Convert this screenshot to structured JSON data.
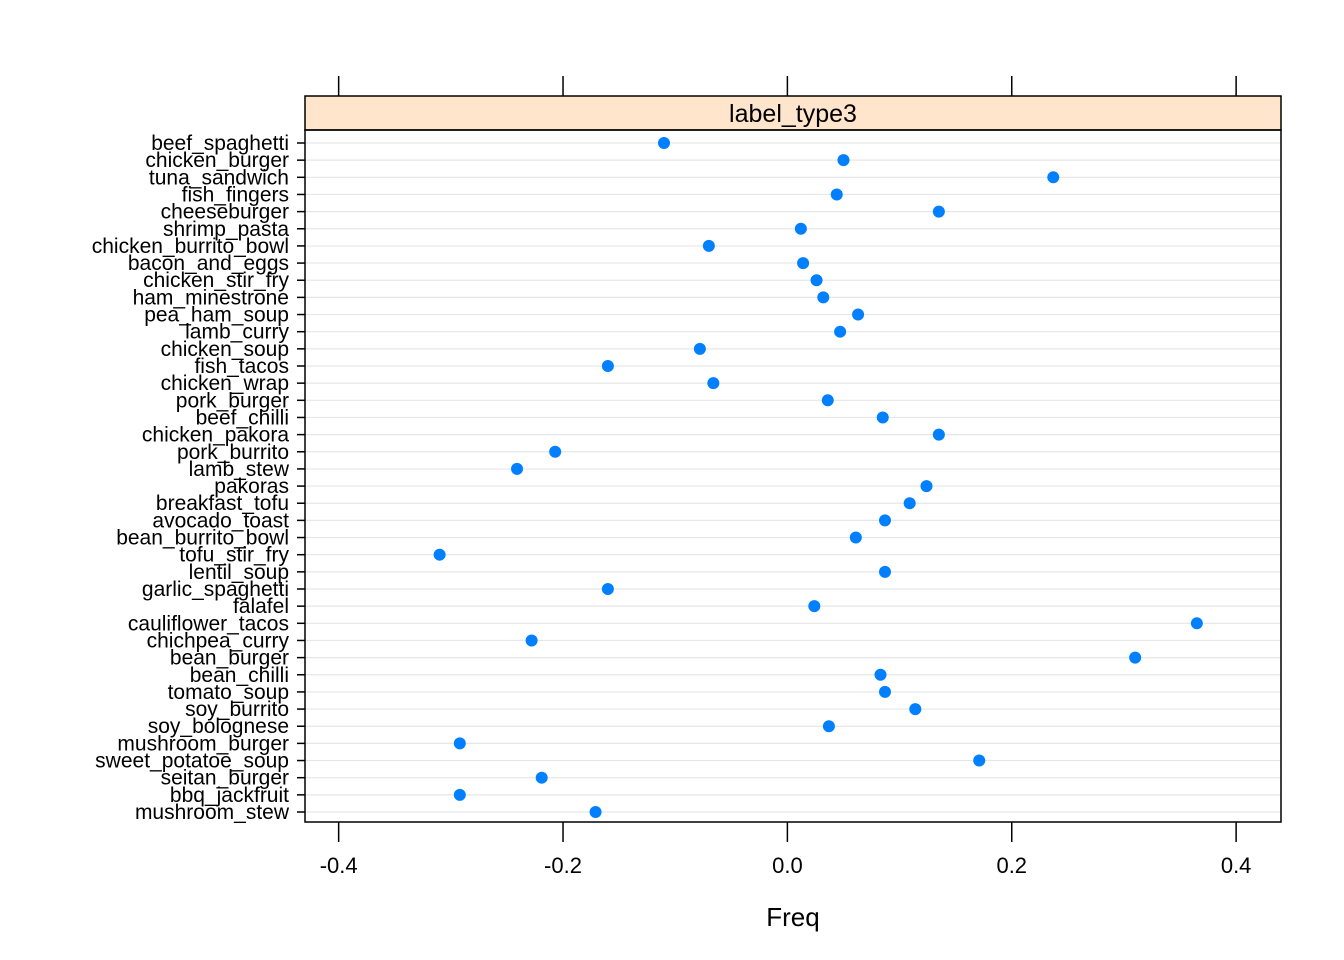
{
  "chart_data": {
    "type": "scatter",
    "panel_title": "label_type3",
    "xlabel": "Freq",
    "xlim": [
      -0.43,
      0.44
    ],
    "xticks": [
      -0.4,
      -0.2,
      0.0,
      0.2,
      0.4
    ],
    "xtick_labels": [
      "-0.4",
      "-0.2",
      "0.0",
      "0.2",
      "0.4"
    ],
    "grid": true,
    "strip_color": "#ffe5cc",
    "point_color": "#0080ff",
    "grid_color": "#e6e6e6",
    "categories": [
      "beef_spaghetti",
      "chicken_burger",
      "tuna_sandwich",
      "fish_fingers",
      "cheeseburger",
      "shrimp_pasta",
      "chicken_burrito_bowl",
      "bacon_and_eggs",
      "chicken_stir_fry",
      "ham_minestrone",
      "pea_ham_soup",
      "lamb_curry",
      "chicken_soup",
      "fish_tacos",
      "chicken_wrap",
      "pork_burger",
      "beef_chilli",
      "chicken_pakora",
      "pork_burrito",
      "lamb_stew",
      "pakoras",
      "breakfast_tofu",
      "avocado_toast",
      "bean_burrito_bowl",
      "tofu_stir_fry",
      "lentil_soup",
      "garlic_spaghetti",
      "falafel",
      "cauliflower_tacos",
      "chichpea_curry",
      "bean_burger",
      "bean_chilli",
      "tomato_soup",
      "soy_burrito",
      "soy_bolognese",
      "mushroom_burger",
      "sweet_potatoe_soup",
      "seitan_burger",
      "bbq_jackfruit",
      "mushroom_stew"
    ],
    "values": [
      -0.11,
      0.05,
      0.237,
      0.044,
      0.135,
      0.012,
      -0.07,
      0.014,
      0.026,
      0.032,
      0.063,
      0.047,
      -0.078,
      -0.16,
      -0.066,
      0.036,
      0.085,
      0.135,
      -0.207,
      -0.241,
      0.124,
      0.109,
      0.087,
      0.061,
      -0.31,
      0.087,
      -0.16,
      0.024,
      0.365,
      -0.228,
      0.31,
      0.083,
      0.087,
      0.114,
      0.037,
      -0.292,
      0.171,
      -0.219,
      -0.292,
      -0.171
    ]
  }
}
